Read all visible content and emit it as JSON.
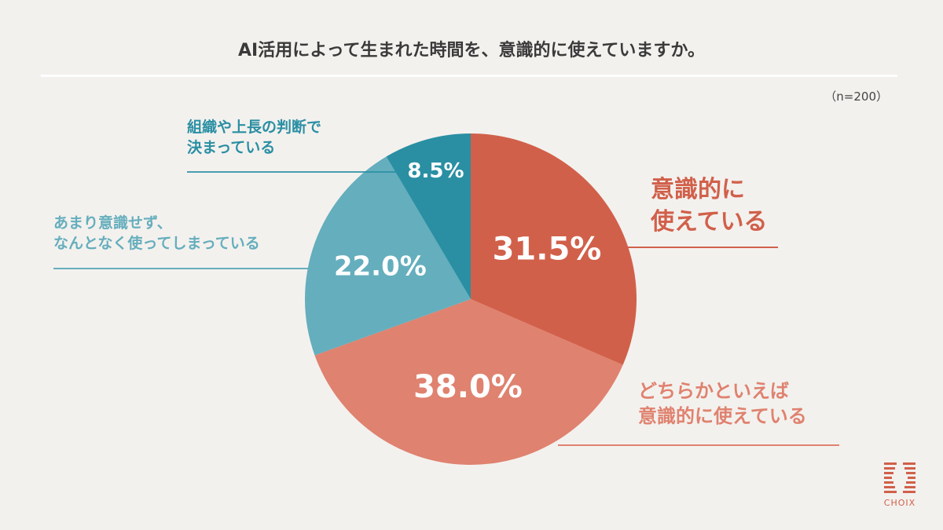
{
  "title": "AI活用によって生まれた時間を、意識的に使えていますか。",
  "sample": "（n=200）",
  "logo": "CHOIX",
  "chart_data": {
    "type": "pie",
    "title": "AI活用によって生まれた時間を、意識的に使えていますか。",
    "start": "top",
    "direction": "clockwise",
    "slices": [
      {
        "label": "意識的に使えている",
        "label_lines": [
          "意識的に",
          "使えている"
        ],
        "value": 31.5,
        "display": "31.5%",
        "color": "#D1604A"
      },
      {
        "label": "どちらかといえば意識的に使えている",
        "label_lines": [
          "どちらかといえば",
          "意識的に使えている"
        ],
        "value": 38.0,
        "display": "38.0%",
        "color": "#DF826F"
      },
      {
        "label": "あまり意識せず、なんとなく使ってしまっている",
        "label_lines": [
          "あまり意識せず、",
          "なんとなく使ってしまっている"
        ],
        "value": 22.0,
        "display": "22.0%",
        "color": "#65AEBD"
      },
      {
        "label": "組織や上長の判断で決まっている",
        "label_lines": [
          "組織や上長の判断で",
          "決まっている"
        ],
        "value": 8.5,
        "display": "8.5%",
        "color": "#2A8FA3"
      }
    ]
  }
}
